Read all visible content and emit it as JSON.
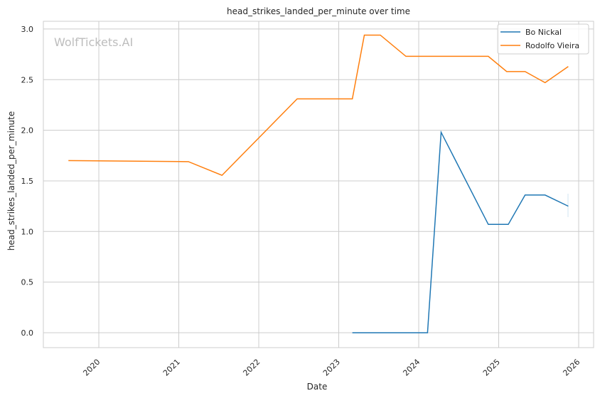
{
  "watermark": "WolfTickets.AI",
  "chart_data": {
    "type": "line",
    "title": "head_strikes_landed_per_minute over time",
    "xlabel": "Date",
    "ylabel": "head_strikes_landed_per_minute",
    "xlim": [
      2019.3,
      2026.2
    ],
    "ylim": [
      -0.15,
      3.1
    ],
    "x_ticks": [
      "2020",
      "2021",
      "2022",
      "2023",
      "2024",
      "2025",
      "2026"
    ],
    "y_ticks": [
      "0.0",
      "0.5",
      "1.0",
      "1.5",
      "2.0",
      "2.5",
      "3.0"
    ],
    "grid": true,
    "legend_position": "top-right",
    "series": [
      {
        "name": "Bo Nickal",
        "color": "#1f77b4",
        "x": [
          2023.17,
          2024.11,
          2024.28,
          2024.87,
          2025.12,
          2025.33,
          2025.58,
          2025.87
        ],
        "y": [
          0.0,
          0.0,
          1.98,
          1.07,
          1.07,
          1.36,
          1.36,
          1.25
        ]
      },
      {
        "name": "Rodolfo Vieira",
        "color": "#ff7f0e",
        "x": [
          2019.62,
          2021.12,
          2021.54,
          2022.48,
          2023.17,
          2023.32,
          2023.52,
          2023.84,
          2024.87,
          2025.1,
          2025.33,
          2025.58,
          2025.87
        ],
        "y": [
          1.7,
          1.69,
          1.555,
          2.31,
          2.31,
          2.94,
          2.94,
          2.73,
          2.73,
          2.58,
          2.58,
          2.47,
          2.63
        ]
      }
    ]
  }
}
